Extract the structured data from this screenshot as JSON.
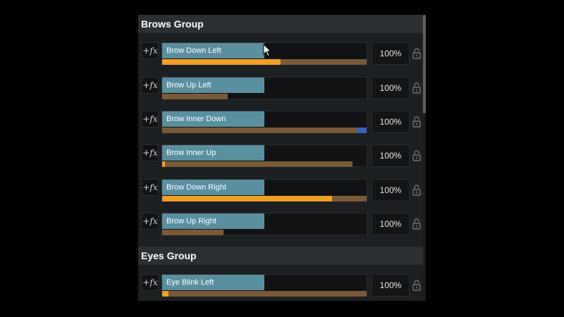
{
  "groups": [
    {
      "title": "Brows Group",
      "rows": [
        {
          "label": "Brow Down Left",
          "value": "100%",
          "fill": 0.58,
          "track": 1.0,
          "end_marker": false
        },
        {
          "label": "Brow Up Left",
          "value": "100%",
          "fill": 0.0,
          "track": 0.32,
          "end_marker": false
        },
        {
          "label": "Brow Inner Down",
          "value": "100%",
          "fill": 0.0,
          "track": 1.0,
          "end_marker": true
        },
        {
          "label": "Brow Inner Up",
          "value": "100%",
          "fill": 0.015,
          "track": 0.93,
          "end_marker": false
        },
        {
          "label": "Brow Down Right",
          "value": "100%",
          "fill": 0.83,
          "track": 1.0,
          "end_marker": false
        },
        {
          "label": "Brow Up Right",
          "value": "100%",
          "fill": 0.0,
          "track": 0.3,
          "end_marker": false
        }
      ]
    },
    {
      "title": "Eyes Group",
      "rows": [
        {
          "label": "Eye Blink Left",
          "value": "100%",
          "fill": 0.03,
          "track": 1.0,
          "end_marker": false
        }
      ]
    }
  ],
  "fx_label": "+fx",
  "icons": {
    "lock": "unlock-icon",
    "cursor": "mouse-pointer"
  },
  "colors": {
    "panel_bg": "#1d2022",
    "header_bg": "#2b3035",
    "label_box": "#5a8fa0",
    "fill": "#f0a024",
    "track": "#7a5a36",
    "end_marker": "#3e63b5"
  }
}
